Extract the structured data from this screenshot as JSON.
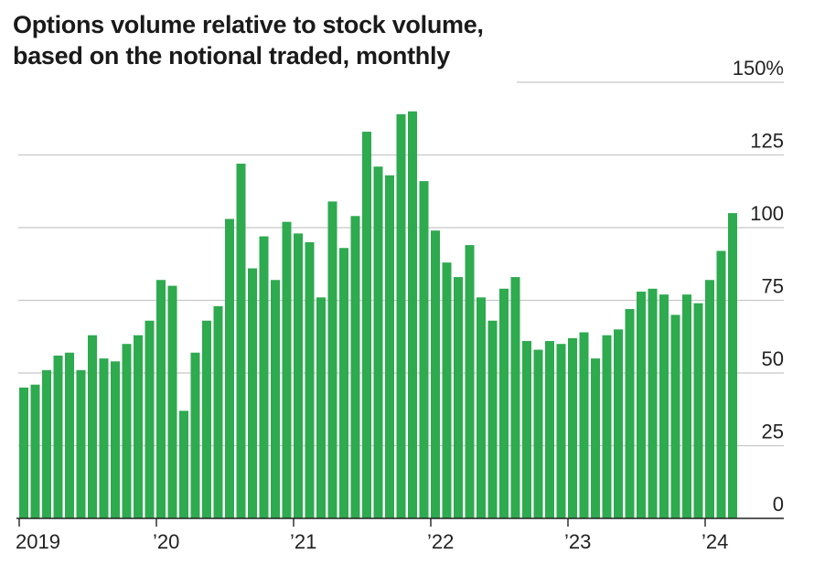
{
  "chart_data": {
    "type": "bar",
    "title_lines": [
      "Options volume relative to stock volume,",
      "based on the notional traded, monthly"
    ],
    "xlabel": "",
    "ylabel": "",
    "ylim": [
      0,
      150
    ],
    "y_ticks": [
      0,
      25,
      50,
      75,
      100,
      125,
      150
    ],
    "y_tick_labels": [
      "0",
      "25",
      "50",
      "75",
      "100",
      "125",
      "150%"
    ],
    "grid": true,
    "x_ticks": [
      {
        "index": 0,
        "label": "2019"
      },
      {
        "index": 12,
        "label": "’20"
      },
      {
        "index": 24,
        "label": "’21"
      },
      {
        "index": 36,
        "label": "’22"
      },
      {
        "index": 48,
        "label": "’23"
      },
      {
        "index": 60,
        "label": "’24"
      }
    ],
    "bar_color": "#2eaa4f",
    "categories": [
      "2019-01",
      "2019-02",
      "2019-03",
      "2019-04",
      "2019-05",
      "2019-06",
      "2019-07",
      "2019-08",
      "2019-09",
      "2019-10",
      "2019-11",
      "2019-12",
      "2020-01",
      "2020-02",
      "2020-03",
      "2020-04",
      "2020-05",
      "2020-06",
      "2020-07",
      "2020-08",
      "2020-09",
      "2020-10",
      "2020-11",
      "2020-12",
      "2021-01",
      "2021-02",
      "2021-03",
      "2021-04",
      "2021-05",
      "2021-06",
      "2021-07",
      "2021-08",
      "2021-09",
      "2021-10",
      "2021-11",
      "2021-12",
      "2022-01",
      "2022-02",
      "2022-03",
      "2022-04",
      "2022-05",
      "2022-06",
      "2022-07",
      "2022-08",
      "2022-09",
      "2022-10",
      "2022-11",
      "2022-12",
      "2023-01",
      "2023-02",
      "2023-03",
      "2023-04",
      "2023-05",
      "2023-06",
      "2023-07",
      "2023-08",
      "2023-09",
      "2023-10",
      "2023-11",
      "2023-12",
      "2024-01",
      "2024-02",
      "2024-03"
    ],
    "values": [
      45,
      46,
      51,
      56,
      57,
      51,
      63,
      55,
      54,
      60,
      63,
      68,
      82,
      80,
      37,
      57,
      68,
      73,
      103,
      122,
      86,
      97,
      82,
      102,
      98,
      95,
      76,
      109,
      93,
      104,
      133,
      121,
      118,
      139,
      140,
      116,
      99,
      88,
      83,
      94,
      76,
      68,
      79,
      83,
      61,
      58,
      61,
      60,
      62,
      64,
      55,
      63,
      65,
      72,
      78,
      79,
      77,
      70,
      77,
      74,
      82,
      92,
      105
    ]
  }
}
